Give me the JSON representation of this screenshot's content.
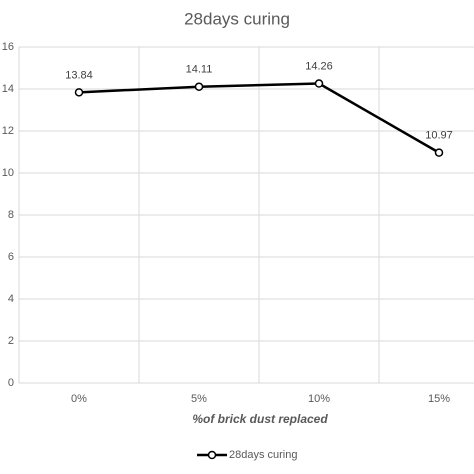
{
  "chart_data": {
    "type": "line",
    "title": "28days curing",
    "x_label": "%of brick dust replaced",
    "categories": [
      "0%",
      "5%",
      "10%",
      "15%"
    ],
    "series": [
      {
        "name": "28days curing",
        "color": "#000000",
        "values": [
          13.84,
          14.11,
          14.26,
          10.97
        ]
      }
    ],
    "ylim": [
      0,
      16
    ],
    "yticks": [
      0,
      2,
      4,
      6,
      8,
      10,
      12,
      14,
      16
    ],
    "grid": true,
    "legend": "bottom"
  }
}
